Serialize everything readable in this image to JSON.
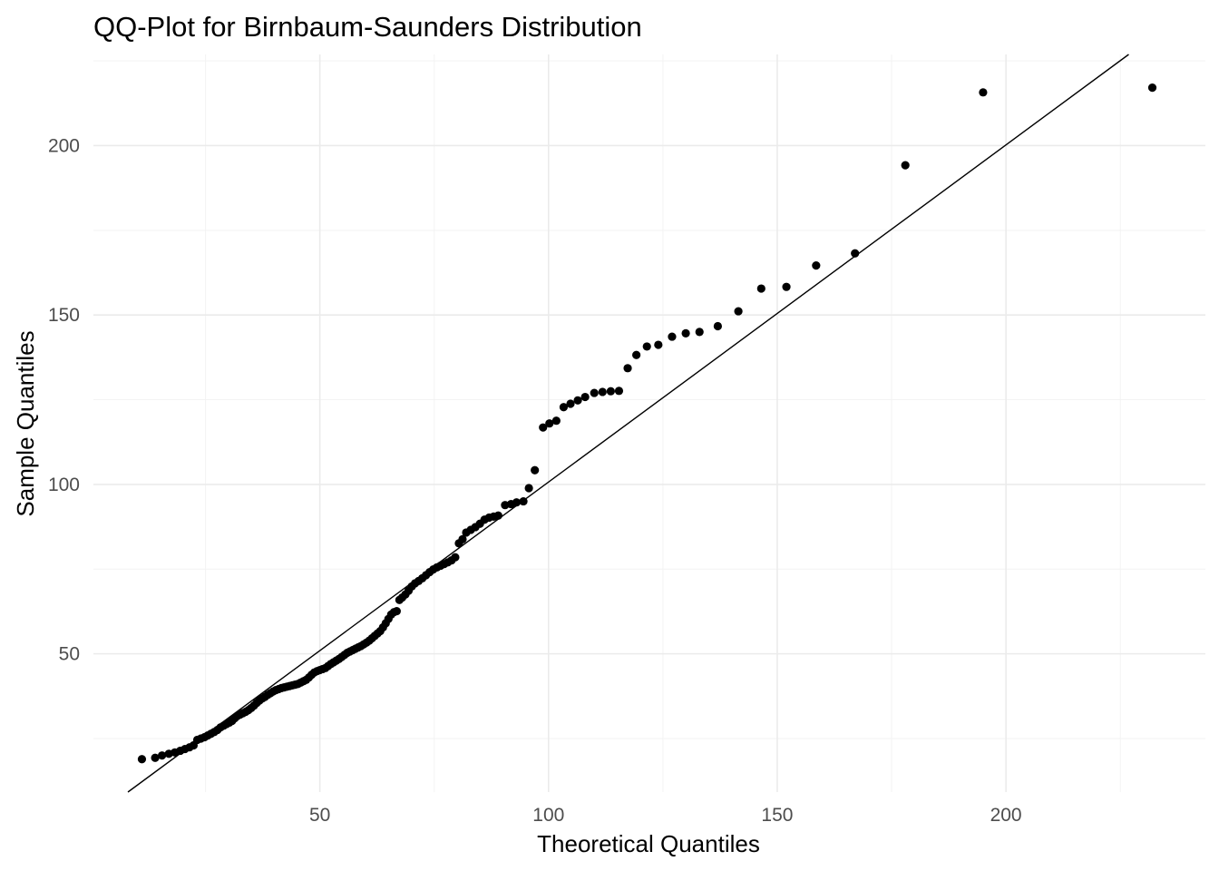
{
  "chart_data": {
    "type": "scatter",
    "title": "QQ-Plot for Birnbaum-Saunders Distribution",
    "xlabel": "Theoretical Quantiles",
    "ylabel": "Sample Quantiles",
    "xlim": [
      0.5,
      243.6
    ],
    "ylim": [
      9.2,
      226.9
    ],
    "x_ticks": [
      50,
      100,
      150,
      200
    ],
    "y_ticks": [
      50,
      100,
      150,
      200
    ],
    "x_tick_labels": [
      "50",
      "100",
      "150",
      "200"
    ],
    "y_tick_labels": [
      "50",
      "100",
      "150",
      "200"
    ],
    "x_minor_ticks": [
      25,
      75,
      125,
      175,
      225
    ],
    "y_minor_ticks": [
      25,
      75,
      125,
      175,
      225
    ],
    "grid": true,
    "legend": "none",
    "reference_line": {
      "slope": 0.995,
      "intercept": 1.2
    },
    "point_color": "#000000",
    "points": [
      {
        "x": 11.1,
        "y": 18.9
      },
      {
        "x": 14.0,
        "y": 19.3
      },
      {
        "x": 15.5,
        "y": 20.0
      },
      {
        "x": 17.0,
        "y": 20.5
      },
      {
        "x": 18.3,
        "y": 20.9
      },
      {
        "x": 19.5,
        "y": 21.4
      },
      {
        "x": 20.5,
        "y": 21.9
      },
      {
        "x": 21.5,
        "y": 22.4
      },
      {
        "x": 22.4,
        "y": 23.0
      },
      {
        "x": 23.2,
        "y": 24.6
      },
      {
        "x": 24.0,
        "y": 25.0
      },
      {
        "x": 24.8,
        "y": 25.4
      },
      {
        "x": 25.5,
        "y": 25.9
      },
      {
        "x": 26.2,
        "y": 26.4
      },
      {
        "x": 26.9,
        "y": 26.9
      },
      {
        "x": 27.6,
        "y": 27.5
      },
      {
        "x": 28.3,
        "y": 28.3
      },
      {
        "x": 29.0,
        "y": 28.8
      },
      {
        "x": 29.6,
        "y": 29.3
      },
      {
        "x": 30.2,
        "y": 29.7
      },
      {
        "x": 30.8,
        "y": 30.2
      },
      {
        "x": 31.4,
        "y": 31.0
      },
      {
        "x": 32.0,
        "y": 31.7
      },
      {
        "x": 32.6,
        "y": 32.1
      },
      {
        "x": 33.2,
        "y": 32.5
      },
      {
        "x": 33.8,
        "y": 32.9
      },
      {
        "x": 34.4,
        "y": 33.4
      },
      {
        "x": 35.0,
        "y": 34.0
      },
      {
        "x": 35.6,
        "y": 34.7
      },
      {
        "x": 36.2,
        "y": 35.5
      },
      {
        "x": 36.8,
        "y": 36.2
      },
      {
        "x": 37.4,
        "y": 36.8
      },
      {
        "x": 38.0,
        "y": 37.3
      },
      {
        "x": 38.6,
        "y": 37.9
      },
      {
        "x": 39.2,
        "y": 38.4
      },
      {
        "x": 39.8,
        "y": 38.9
      },
      {
        "x": 40.4,
        "y": 39.3
      },
      {
        "x": 41.0,
        "y": 39.6
      },
      {
        "x": 41.6,
        "y": 39.9
      },
      {
        "x": 42.2,
        "y": 40.1
      },
      {
        "x": 42.8,
        "y": 40.3
      },
      {
        "x": 43.4,
        "y": 40.5
      },
      {
        "x": 44.0,
        "y": 40.7
      },
      {
        "x": 44.6,
        "y": 40.9
      },
      {
        "x": 45.2,
        "y": 41.1
      },
      {
        "x": 45.8,
        "y": 41.5
      },
      {
        "x": 46.4,
        "y": 41.9
      },
      {
        "x": 47.0,
        "y": 42.3
      },
      {
        "x": 47.6,
        "y": 43.0
      },
      {
        "x": 48.2,
        "y": 43.8
      },
      {
        "x": 48.8,
        "y": 44.5
      },
      {
        "x": 49.4,
        "y": 44.9
      },
      {
        "x": 50.0,
        "y": 45.2
      },
      {
        "x": 50.6,
        "y": 45.5
      },
      {
        "x": 51.2,
        "y": 45.8
      },
      {
        "x": 51.8,
        "y": 46.4
      },
      {
        "x": 52.4,
        "y": 47.0
      },
      {
        "x": 53.0,
        "y": 47.5
      },
      {
        "x": 53.6,
        "y": 48.0
      },
      {
        "x": 54.2,
        "y": 48.5
      },
      {
        "x": 54.8,
        "y": 49.1
      },
      {
        "x": 55.4,
        "y": 49.7
      },
      {
        "x": 56.0,
        "y": 50.3
      },
      {
        "x": 56.6,
        "y": 50.7
      },
      {
        "x": 57.2,
        "y": 51.1
      },
      {
        "x": 57.8,
        "y": 51.5
      },
      {
        "x": 58.4,
        "y": 51.9
      },
      {
        "x": 59.0,
        "y": 52.3
      },
      {
        "x": 59.6,
        "y": 52.8
      },
      {
        "x": 60.2,
        "y": 53.3
      },
      {
        "x": 60.8,
        "y": 53.9
      },
      {
        "x": 61.4,
        "y": 54.6
      },
      {
        "x": 62.0,
        "y": 55.3
      },
      {
        "x": 62.6,
        "y": 56.0
      },
      {
        "x": 63.2,
        "y": 56.7
      },
      {
        "x": 63.8,
        "y": 57.8
      },
      {
        "x": 64.4,
        "y": 59.0
      },
      {
        "x": 65.0,
        "y": 60.3
      },
      {
        "x": 65.6,
        "y": 61.6
      },
      {
        "x": 66.2,
        "y": 62.3
      },
      {
        "x": 66.8,
        "y": 62.6
      },
      {
        "x": 67.4,
        "y": 65.9
      },
      {
        "x": 68.0,
        "y": 66.6
      },
      {
        "x": 68.7,
        "y": 67.5
      },
      {
        "x": 69.4,
        "y": 68.6
      },
      {
        "x": 70.1,
        "y": 69.9
      },
      {
        "x": 70.8,
        "y": 70.8
      },
      {
        "x": 71.6,
        "y": 71.5
      },
      {
        "x": 72.4,
        "y": 72.3
      },
      {
        "x": 73.2,
        "y": 73.2
      },
      {
        "x": 74.0,
        "y": 74.1
      },
      {
        "x": 74.8,
        "y": 74.9
      },
      {
        "x": 75.6,
        "y": 75.5
      },
      {
        "x": 76.4,
        "y": 76.0
      },
      {
        "x": 77.2,
        "y": 76.5
      },
      {
        "x": 78.0,
        "y": 77.0
      },
      {
        "x": 78.8,
        "y": 77.6
      },
      {
        "x": 79.6,
        "y": 78.5
      },
      {
        "x": 80.4,
        "y": 82.6
      },
      {
        "x": 81.2,
        "y": 83.8
      },
      {
        "x": 82.0,
        "y": 85.8
      },
      {
        "x": 83.0,
        "y": 86.6
      },
      {
        "x": 84.0,
        "y": 87.4
      },
      {
        "x": 85.0,
        "y": 88.4
      },
      {
        "x": 86.0,
        "y": 89.6
      },
      {
        "x": 87.0,
        "y": 90.2
      },
      {
        "x": 88.0,
        "y": 90.5
      },
      {
        "x": 89.0,
        "y": 90.8
      },
      {
        "x": 90.5,
        "y": 93.9
      },
      {
        "x": 91.8,
        "y": 94.2
      },
      {
        "x": 93.0,
        "y": 94.7
      },
      {
        "x": 94.5,
        "y": 95.0
      },
      {
        "x": 95.7,
        "y": 98.9
      },
      {
        "x": 97.0,
        "y": 104.2
      },
      {
        "x": 98.8,
        "y": 116.8
      },
      {
        "x": 100.2,
        "y": 118.0
      },
      {
        "x": 101.7,
        "y": 118.8
      },
      {
        "x": 103.3,
        "y": 122.8
      },
      {
        "x": 104.8,
        "y": 123.8
      },
      {
        "x": 106.4,
        "y": 124.8
      },
      {
        "x": 108.0,
        "y": 125.8
      },
      {
        "x": 110.0,
        "y": 127.0
      },
      {
        "x": 111.8,
        "y": 127.3
      },
      {
        "x": 113.6,
        "y": 127.5
      },
      {
        "x": 115.4,
        "y": 127.6
      },
      {
        "x": 117.3,
        "y": 134.3
      },
      {
        "x": 119.2,
        "y": 138.2
      },
      {
        "x": 121.5,
        "y": 140.7
      },
      {
        "x": 124.0,
        "y": 141.2
      },
      {
        "x": 127.0,
        "y": 143.6
      },
      {
        "x": 130.0,
        "y": 144.6
      },
      {
        "x": 133.0,
        "y": 145.0
      },
      {
        "x": 137.0,
        "y": 146.7
      },
      {
        "x": 141.5,
        "y": 151.1
      },
      {
        "x": 146.5,
        "y": 157.8
      },
      {
        "x": 152.0,
        "y": 158.3
      },
      {
        "x": 158.5,
        "y": 164.6
      },
      {
        "x": 167.0,
        "y": 168.2
      },
      {
        "x": 178.0,
        "y": 194.2
      },
      {
        "x": 195.0,
        "y": 215.7
      },
      {
        "x": 232.0,
        "y": 217.1
      }
    ]
  }
}
